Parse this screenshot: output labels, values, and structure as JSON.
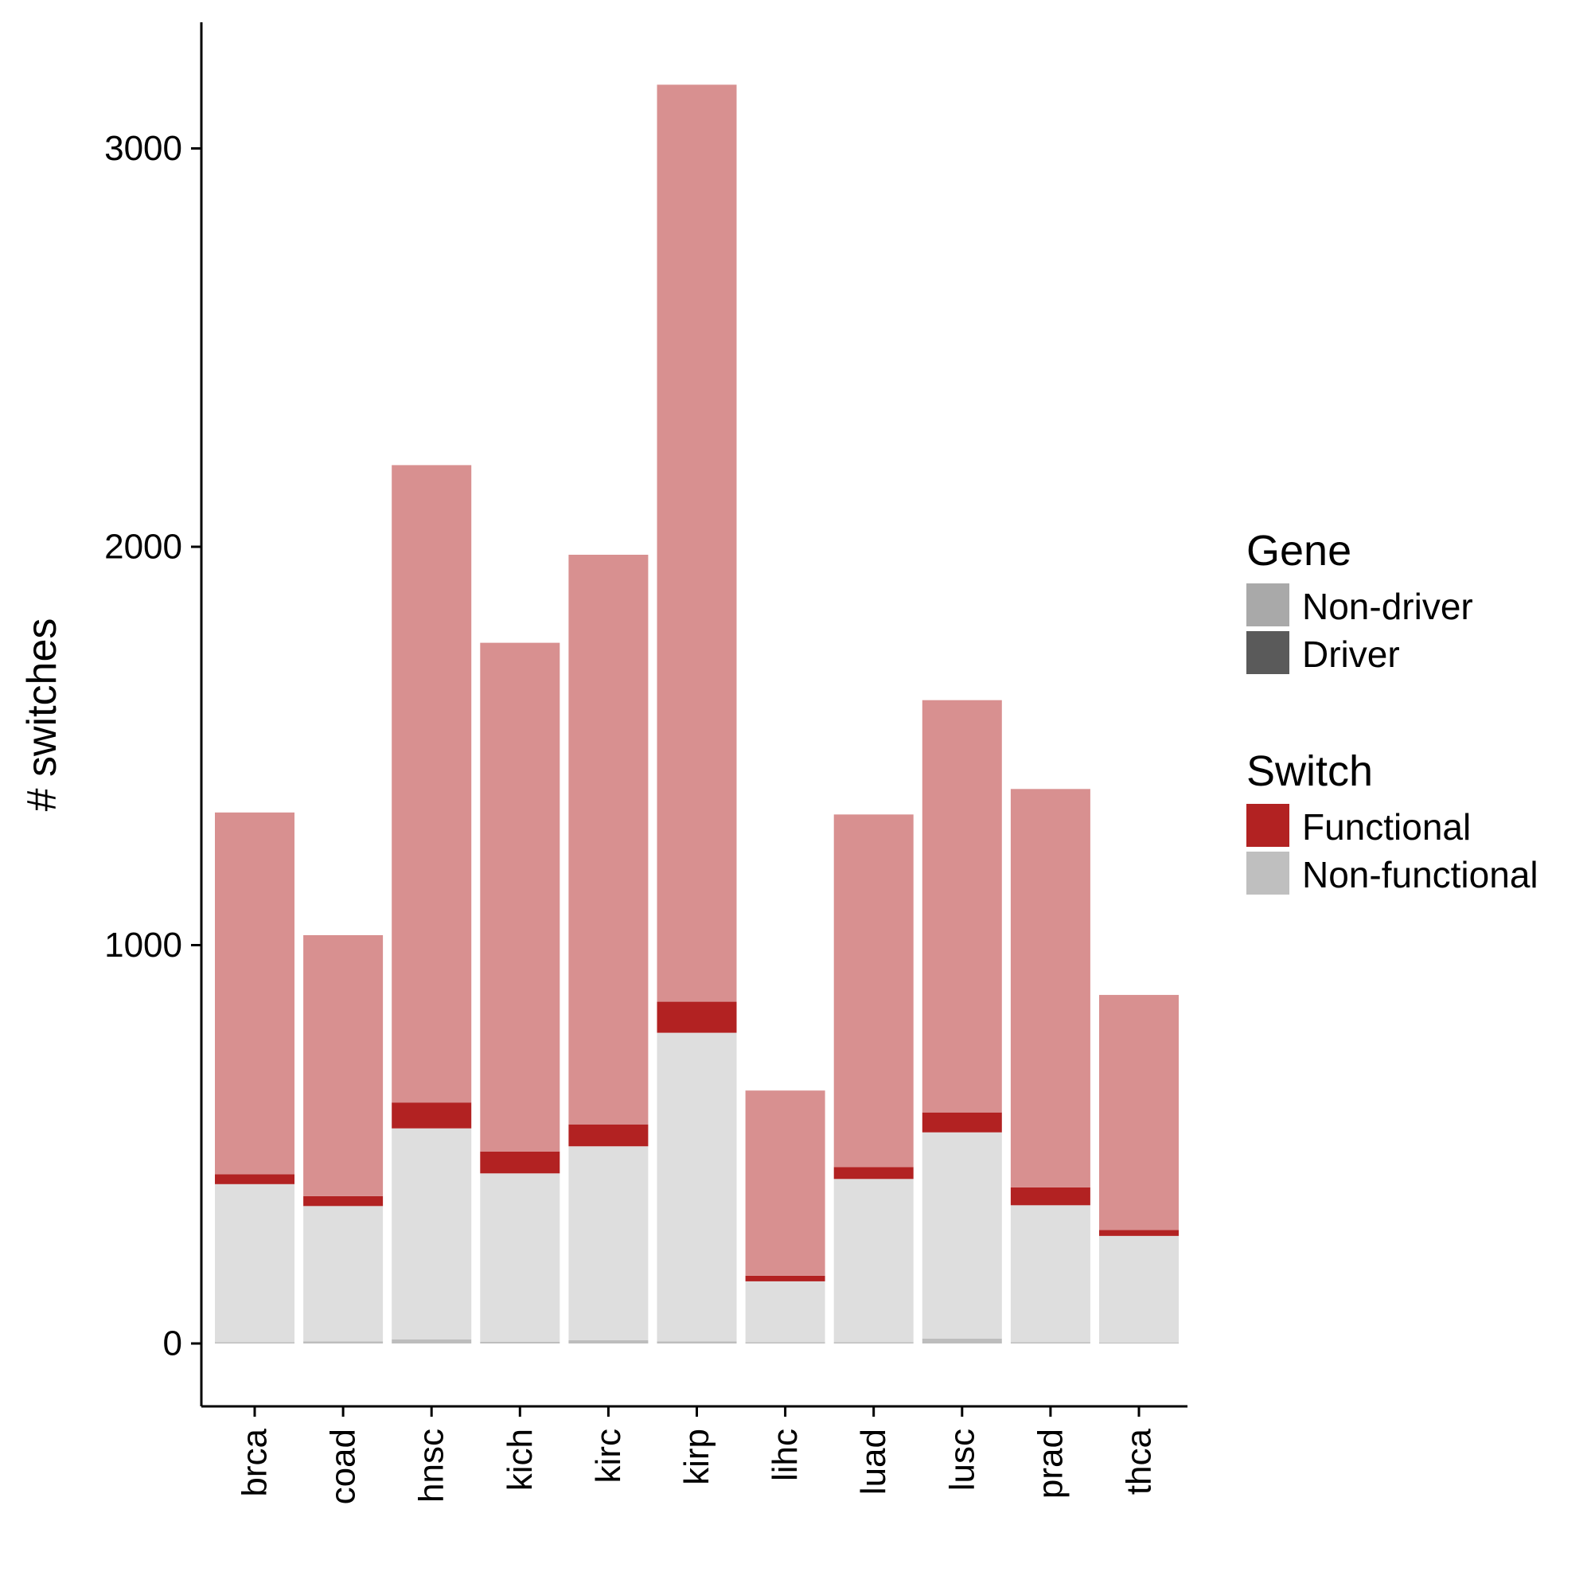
{
  "chart_data": {
    "type": "bar",
    "stacked": true,
    "title": "",
    "xlabel": "",
    "ylabel": "# switches",
    "ylim": [
      -150,
      3330
    ],
    "yticks": [
      0,
      1000,
      2000,
      3000
    ],
    "grid": false,
    "legend_position": "right",
    "categories": [
      "brca",
      "coad",
      "hnsc",
      "kich",
      "kirc",
      "kirp",
      "lihc",
      "luad",
      "lusc",
      "prad",
      "thca"
    ],
    "series": [
      {
        "key": "nonfunc_driver",
        "color": "#bdbdbd",
        "values": [
          3,
          5,
          10,
          4,
          8,
          5,
          3,
          3,
          12,
          3,
          2
        ]
      },
      {
        "key": "nonfunc_nondriver",
        "color": "#dedede",
        "values": [
          397,
          340,
          530,
          423,
          487,
          775,
          153,
          410,
          518,
          344,
          268
        ]
      },
      {
        "key": "func_driver",
        "color": "#b22222",
        "values": [
          0,
          0,
          0,
          0,
          0,
          0,
          0,
          0,
          0,
          0,
          0
        ]
      },
      {
        "key": "func_nondriver_dark",
        "color": "#b22222",
        "values": [
          25,
          25,
          65,
          55,
          55,
          78,
          14,
          30,
          50,
          45,
          15
        ]
      },
      {
        "key": "func_nondriver_light",
        "color": "#d89090",
        "values": [
          908,
          655,
          1600,
          1277,
          1430,
          2302,
          465,
          885,
          1035,
          1000,
          590
        ]
      }
    ],
    "legend": {
      "groups": [
        {
          "title": "Gene",
          "items": [
            {
              "label": "Non-driver",
              "color": "#a9a9a9"
            },
            {
              "label": "Driver",
              "color": "#5a5a5a"
            }
          ]
        },
        {
          "title": "Switch",
          "items": [
            {
              "label": "Functional",
              "color": "#b22222"
            },
            {
              "label": "Non-functional",
              "color": "#bfbfbf"
            }
          ]
        }
      ]
    }
  }
}
